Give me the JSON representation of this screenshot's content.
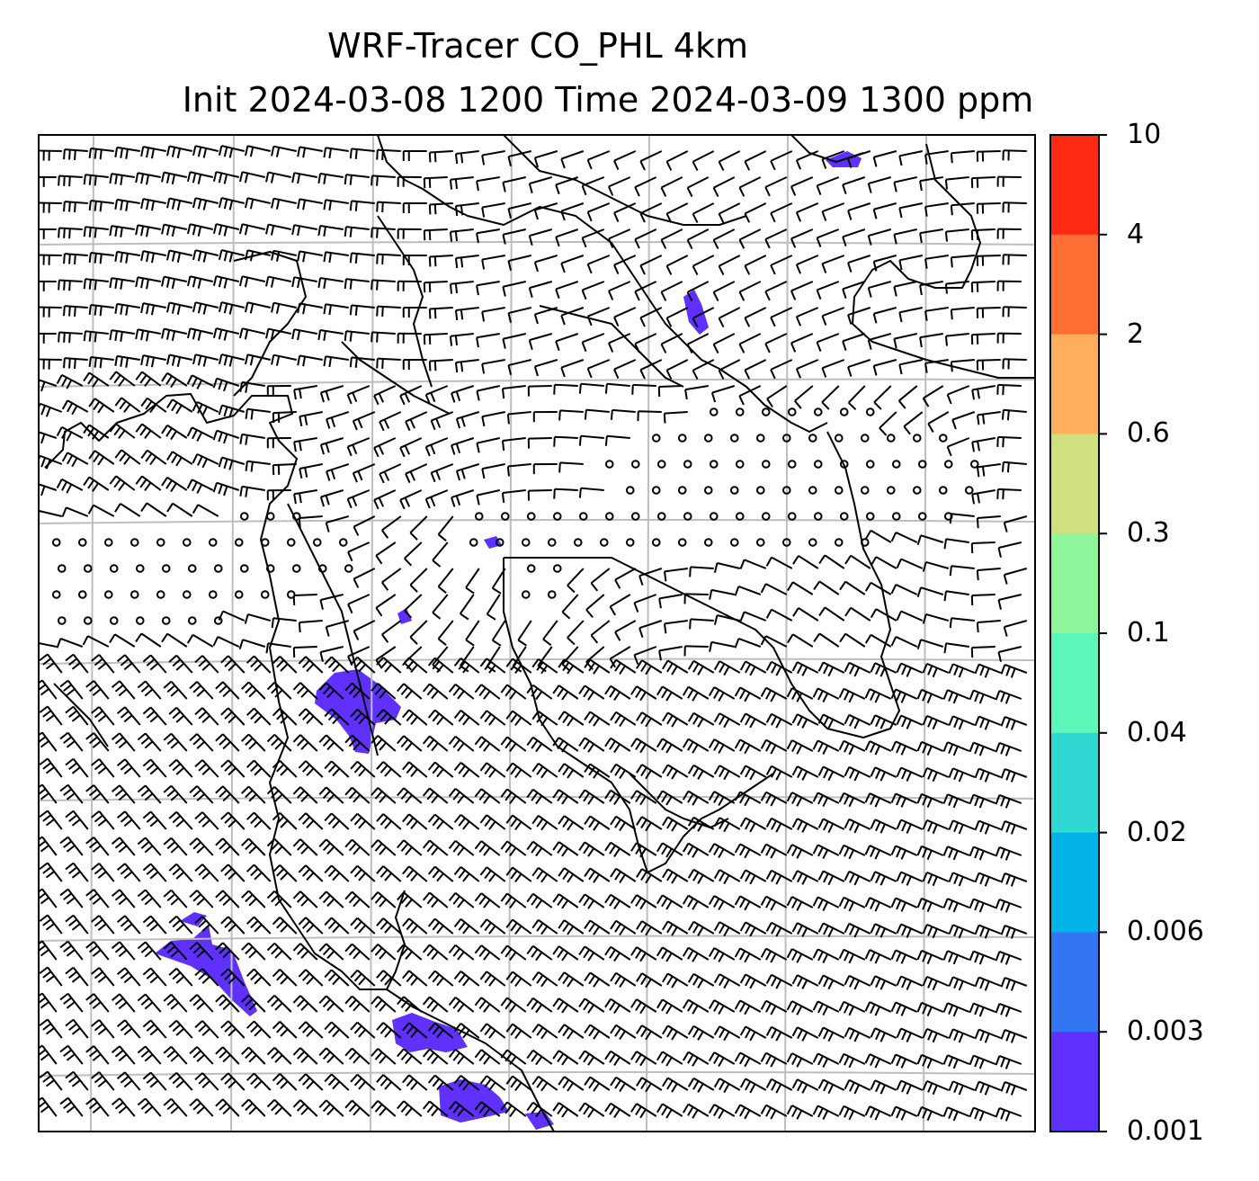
{
  "title": {
    "line1": "WRF-Tracer CO_PHL 4km",
    "line2": "Init 2024-03-08 1200 Time 2024-03-09 1300 ppm"
  },
  "colorbar": {
    "labels": [
      "10",
      "4",
      "2",
      "0.6",
      "0.3",
      "0.1",
      "0.04",
      "0.02",
      "0.006",
      "0.003",
      "0.001"
    ],
    "colors": [
      "#ff2a14",
      "#ff6e35",
      "#ffaf5c",
      "#d0e07e",
      "#8ef59a",
      "#5ef6b8",
      "#2fd8d2",
      "#01b3e8",
      "#3476f2",
      "#6030ff"
    ]
  },
  "map": {
    "barb_color": "#000000",
    "grid_color": "#bdbdbd",
    "tracer_color": "#6030ff",
    "calm_symbol": "circle"
  }
}
